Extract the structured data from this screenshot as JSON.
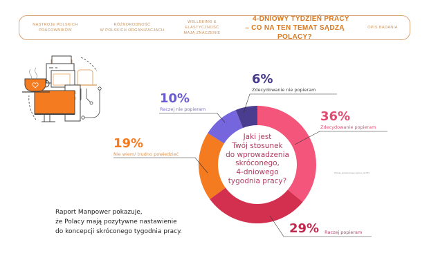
{
  "nav": {
    "items": [
      {
        "line1": "Nastroje polskich",
        "line2": "pracowników"
      },
      {
        "line1": "Różnorodność",
        "line2": "w polskich organizacjach"
      },
      {
        "line1": "Wellbeing & elastyczność",
        "line2": "mają znaczenie"
      },
      {
        "line1": "4-dniowy tydzień pracy",
        "line2": "– co na ten temat sądzą Polacy?"
      },
      {
        "line1": "Opis badania",
        "line2": ""
      }
    ],
    "active_index": 3,
    "border_color": "#d9a57a",
    "accent_color": "#d9781f"
  },
  "chart_data": {
    "type": "pie",
    "subtype": "donut",
    "title": "Jaki jest Twój stosunek do wprowadzenia skróconego, 4-dniowego tygodnia pracy?",
    "categories": [
      "Zdecydowanie popieram",
      "Raczej popieram",
      "Nie wiem/ trudno powiedzieć",
      "Raczej nie popieram",
      "Zdecydowanie nie popieram"
    ],
    "values": [
      36,
      29,
      19,
      10,
      6
    ],
    "unit": "%",
    "colors": [
      "#f4557a",
      "#d3304f",
      "#f47b20",
      "#7566dd",
      "#4a3d8f"
    ],
    "note": "Pytanie jednokrotnego wyboru, N=753"
  },
  "labels": {
    "s36": {
      "pct": "36%",
      "cap": "Zdecydowanie popieram"
    },
    "s29": {
      "pct": "29%",
      "cap": "Raczej popieram"
    },
    "s19": {
      "pct": "19%",
      "cap": "Nie wiem/ trudno powiedzieć"
    },
    "s10": {
      "pct": "10%",
      "cap": "Raczej nie popieram"
    },
    "s6": {
      "pct": "6%",
      "cap": "Zdecydowanie nie popieram"
    }
  },
  "center_question": [
    "Jaki jest",
    "Twój stosunek",
    "do wprowadzenia",
    "skróconego,",
    "4-dniowego",
    "tygodnia pracy?"
  ],
  "summary": [
    "Raport Manpower pokazuje,",
    "że Polacy mają pozytywne nastawienie",
    "do koncepcji skróconego tygodnia pracy."
  ]
}
